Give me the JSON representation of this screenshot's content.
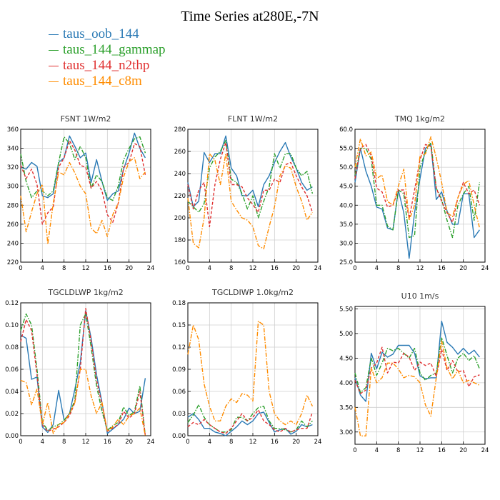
{
  "page_title": "Time Series at280E,-7N",
  "legend": [
    {
      "label": "taus_oob_144",
      "color": "#2b7ab5"
    },
    {
      "label": "taus_144_gammap",
      "color": "#2ca02c"
    },
    {
      "label": "taus_144_n2thp",
      "color": "#e03030"
    },
    {
      "label": "taus_144_c8m",
      "color": "#ff8c00"
    }
  ],
  "chart_data": [
    {
      "type": "line",
      "title": "FSNT  1W/m2",
      "ylim": [
        220,
        360
      ],
      "yticks": [
        220,
        240,
        260,
        280,
        300,
        320,
        340,
        360
      ],
      "ytick_decimals": 0,
      "x": [
        0,
        1,
        2,
        3,
        4,
        5,
        6,
        7,
        8,
        9,
        10,
        11,
        12,
        13,
        14,
        15,
        16,
        17,
        18,
        19,
        20,
        21,
        22,
        23
      ],
      "xlim": [
        0,
        24
      ],
      "xticks": [
        0,
        4,
        8,
        12,
        16,
        20,
        24
      ],
      "series": [
        {
          "values": [
            320,
            318,
            325,
            321,
            290,
            288,
            292,
            325,
            330,
            353,
            342,
            330,
            335,
            304,
            328,
            305,
            285,
            292,
            295,
            318,
            335,
            356,
            340,
            330
          ]
        },
        {
          "values": [
            334,
            305,
            288,
            295,
            295,
            290,
            295,
            325,
            352,
            345,
            328,
            342,
            330,
            298,
            312,
            305,
            288,
            285,
            300,
            328,
            340,
            350,
            352,
            335
          ]
        },
        {
          "values": [
            322,
            308,
            318,
            302,
            260,
            272,
            278,
            320,
            330,
            348,
            338,
            322,
            320,
            298,
            305,
            295,
            270,
            262,
            282,
            320,
            325,
            345,
            342,
            312
          ]
        },
        {
          "values": [
            290,
            252,
            273,
            292,
            302,
            239,
            282,
            315,
            312,
            325,
            314,
            300,
            292,
            256,
            250,
            264,
            247,
            270,
            282,
            310,
            326,
            330,
            308,
            315
          ]
        }
      ]
    },
    {
      "type": "line",
      "title": "FLNT  1W/m2",
      "ylim": [
        160,
        280
      ],
      "yticks": [
        160,
        180,
        200,
        220,
        240,
        260,
        280
      ],
      "ytick_decimals": 0,
      "x": [
        0,
        1,
        2,
        3,
        4,
        5,
        6,
        7,
        8,
        9,
        10,
        11,
        12,
        13,
        14,
        15,
        16,
        17,
        18,
        19,
        20,
        21,
        22,
        23
      ],
      "xlim": [
        0,
        24
      ],
      "xticks": [
        0,
        4,
        8,
        12,
        16,
        20,
        24
      ],
      "series": [
        {
          "values": [
            232,
            210,
            215,
            259,
            250,
            258,
            258,
            274,
            245,
            238,
            220,
            220,
            225,
            210,
            230,
            238,
            250,
            260,
            268,
            255,
            245,
            232,
            225,
            228
          ]
        },
        {
          "values": [
            215,
            210,
            205,
            213,
            245,
            255,
            260,
            270,
            235,
            232,
            222,
            208,
            220,
            200,
            215,
            228,
            258,
            245,
            258,
            258,
            245,
            238,
            242,
            222
          ]
        },
        {
          "values": [
            230,
            208,
            225,
            232,
            192,
            230,
            253,
            268,
            230,
            230,
            228,
            218,
            212,
            205,
            225,
            225,
            235,
            232,
            248,
            250,
            238,
            228,
            220,
            205
          ]
        },
        {
          "values": [
            218,
            177,
            173,
            200,
            258,
            252,
            230,
            258,
            215,
            207,
            200,
            198,
            192,
            175,
            172,
            192,
            210,
            238,
            247,
            245,
            228,
            215,
            198,
            205
          ]
        }
      ]
    },
    {
      "type": "line",
      "title": "TMQ  1kg/m2",
      "ylim": [
        25,
        60
      ],
      "yticks": [
        25,
        30,
        35,
        40,
        45,
        50,
        55,
        60
      ],
      "ytick_decimals": 1,
      "x": [
        0,
        1,
        2,
        3,
        4,
        5,
        6,
        7,
        8,
        9,
        10,
        11,
        12,
        13,
        14,
        15,
        16,
        17,
        18,
        19,
        20,
        21,
        22,
        23
      ],
      "xlim": [
        0,
        24
      ],
      "xticks": [
        0,
        4,
        8,
        12,
        16,
        20,
        24
      ],
      "series": [
        {
          "values": [
            46,
            55,
            49,
            45,
            39.5,
            39,
            34,
            33.5,
            44,
            38,
            26,
            38,
            47,
            55,
            56,
            41.5,
            43.5,
            38.5,
            35,
            35,
            43,
            43,
            31.5,
            33.5
          ]
        },
        {
          "values": [
            48,
            55,
            55,
            52,
            40,
            40,
            34.5,
            33.5,
            44,
            43,
            31.5,
            32,
            50,
            54,
            56.5,
            44.5,
            41.5,
            36,
            31.5,
            40,
            43,
            45,
            36,
            46
          ]
        },
        {
          "values": [
            47,
            55,
            56,
            53,
            44.5,
            43.5,
            39.5,
            40,
            44,
            44,
            36.5,
            44,
            52,
            56,
            55.5,
            44.5,
            41,
            38,
            35.5,
            42,
            46,
            43,
            44,
            40
          ]
        },
        {
          "values": [
            50,
            57.5,
            53,
            54,
            47,
            48,
            41,
            40,
            45,
            49.5,
            36,
            40,
            53,
            53.5,
            58,
            52.5,
            46,
            38,
            37,
            42,
            45.5,
            46.5,
            40,
            34
          ]
        }
      ]
    },
    {
      "type": "line",
      "title": "TGCLDLWP  1kg/m2",
      "ylim": [
        0,
        0.12
      ],
      "yticks": [
        0,
        0.02,
        0.04,
        0.06,
        0.08,
        0.1,
        0.12
      ],
      "ytick_decimals": 2,
      "x": [
        0,
        1,
        2,
        3,
        4,
        5,
        6,
        7,
        8,
        9,
        10,
        11,
        12,
        13,
        14,
        15,
        16,
        17,
        18,
        19,
        20,
        21,
        22,
        23
      ],
      "xlim": [
        0,
        24
      ],
      "xticks": [
        0,
        4,
        8,
        12,
        16,
        20,
        24
      ],
      "series": [
        {
          "values": [
            0.091,
            0.088,
            0.051,
            0.053,
            0.008,
            0.003,
            0.01,
            0.041,
            0.014,
            0.02,
            0.042,
            0.066,
            0.113,
            0.088,
            0.055,
            0.03,
            0.002,
            0.006,
            0.01,
            0.015,
            0.025,
            0.02,
            0.022,
            0.052
          ]
        },
        {
          "values": [
            0.095,
            0.11,
            0.1,
            0.06,
            0.012,
            0.005,
            0.008,
            0.01,
            0.014,
            0.02,
            0.032,
            0.1,
            0.11,
            0.08,
            0.045,
            0.022,
            0.005,
            0.009,
            0.012,
            0.026,
            0.018,
            0.022,
            0.045,
            0
          ]
        },
        {
          "values": [
            0.085,
            0.105,
            0.095,
            0.055,
            0.01,
            0.004,
            0.006,
            0.008,
            0.012,
            0.018,
            0.03,
            0.06,
            0.115,
            0.085,
            0.05,
            0.028,
            0.004,
            0.007,
            0.01,
            0.022,
            0.016,
            0.02,
            0.04,
            0
          ]
        },
        {
          "values": [
            0.05,
            0.048,
            0.028,
            0.042,
            0.01,
            0.03,
            0.002,
            0.01,
            0.012,
            0.02,
            0.03,
            0.06,
            0.06,
            0.036,
            0.02,
            0.03,
            0.004,
            0.008,
            0.015,
            0.01,
            0.018,
            0.02,
            0.025,
            0
          ]
        }
      ]
    },
    {
      "type": "line",
      "title": "TGCLDIWP  1.0kg/m2",
      "ylim": [
        0,
        0.18
      ],
      "yticks": [
        0,
        0.03,
        0.06,
        0.09,
        0.12,
        0.15,
        0.18
      ],
      "ytick_decimals": 2,
      "x": [
        0,
        1,
        2,
        3,
        4,
        5,
        6,
        7,
        8,
        9,
        10,
        11,
        12,
        13,
        14,
        15,
        16,
        17,
        18,
        19,
        20,
        21,
        22,
        23
      ],
      "xlim": [
        0,
        24
      ],
      "xticks": [
        0,
        4,
        8,
        12,
        16,
        20,
        24
      ],
      "series": [
        {
          "values": [
            0.025,
            0.03,
            0.022,
            0.01,
            0.01,
            0.005,
            0.003,
            0,
            0.006,
            0.012,
            0.02,
            0.015,
            0.02,
            0.03,
            0.032,
            0.018,
            0.005,
            0.008,
            0.01,
            0.002,
            0.006,
            0.015,
            0.012,
            0.015
          ]
        },
        {
          "values": [
            0.018,
            0.028,
            0.042,
            0.025,
            0.015,
            0.01,
            0.005,
            0.005,
            0.008,
            0.025,
            0.025,
            0.02,
            0.03,
            0.038,
            0.04,
            0.02,
            0.01,
            0.01,
            0.008,
            0.005,
            0.008,
            0.02,
            0.012,
            0.02
          ]
        },
        {
          "values": [
            0.012,
            0.018,
            0.015,
            0.022,
            0.015,
            0.01,
            0.005,
            0.003,
            0.01,
            0.02,
            0.03,
            0.02,
            0.025,
            0.035,
            0.02,
            0.015,
            0.008,
            0.005,
            0.01,
            0.005,
            0.008,
            0.01,
            0.01,
            0.032
          ]
        },
        {
          "values": [
            0.11,
            0.15,
            0.13,
            0.07,
            0.04,
            0.02,
            0.02,
            0.04,
            0.05,
            0.045,
            0.057,
            0.055,
            0.047,
            0.155,
            0.15,
            0.06,
            0.03,
            0.02,
            0.015,
            0.02,
            0.015,
            0.03,
            0.055,
            0.04
          ]
        }
      ]
    },
    {
      "type": "line",
      "title": "U10  1m/s",
      "ylim": [
        2.75,
        5.55
      ],
      "yticks": [
        3,
        3.5,
        4,
        4.5,
        5,
        5.5
      ],
      "ytick_decimals": 2,
      "x": [
        0,
        1,
        2,
        3,
        4,
        5,
        6,
        7,
        8,
        9,
        10,
        11,
        12,
        13,
        14,
        15,
        16,
        17,
        18,
        19,
        20,
        21,
        22,
        23
      ],
      "xlim": [
        0,
        24
      ],
      "xticks": [
        0,
        4,
        8,
        12,
        16,
        20,
        24
      ],
      "series": [
        {
          "values": [
            4.1,
            3.75,
            3.62,
            4.6,
            4.28,
            4.62,
            4.52,
            4.58,
            4.76,
            4.76,
            4.76,
            4.6,
            4.14,
            4.08,
            4.1,
            4.1,
            5.25,
            4.82,
            4.72,
            4.58,
            4.7,
            4.58,
            4.66,
            4.52
          ]
        },
        {
          "values": [
            4.2,
            3.8,
            3.9,
            4.5,
            4.15,
            4.4,
            4.7,
            4.65,
            4.7,
            4.6,
            4.5,
            4.7,
            4.2,
            4.05,
            4.15,
            4.2,
            4.92,
            4.55,
            4.2,
            4.5,
            4.6,
            4.45,
            4.55,
            4.28
          ]
        },
        {
          "values": [
            4.05,
            3.78,
            3.85,
            4.3,
            4.4,
            4.72,
            4.2,
            4.42,
            4.4,
            4.6,
            4.52,
            4.25,
            4.42,
            4.35,
            4.4,
            4.12,
            4.68,
            4.25,
            4.45,
            4.22,
            4.25,
            3.92,
            4.12,
            4.16
          ]
        },
        {
          "values": [
            3.5,
            2.92,
            2.92,
            4.3,
            4.0,
            4.1,
            4.4,
            4.4,
            4.28,
            4.1,
            4.15,
            4.12,
            4.0,
            3.55,
            3.32,
            4.1,
            4.85,
            4.3,
            4.08,
            4.25,
            4.0,
            4.05,
            4.0,
            3.95
          ]
        }
      ]
    }
  ]
}
